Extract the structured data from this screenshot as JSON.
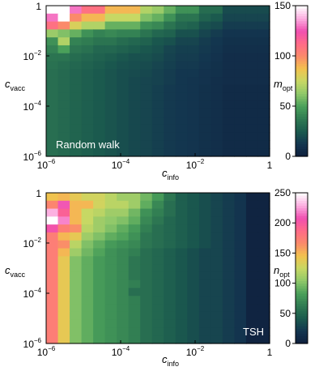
{
  "chart_data": [
    {
      "type": "heatmap",
      "annotation": "Random walk",
      "xlabel": {
        "base": "c",
        "sub": "info"
      },
      "ylabel": {
        "base": "c",
        "sub": "vacc"
      },
      "x_scale": "log",
      "y_scale": "log",
      "xlim": [
        1e-06,
        1
      ],
      "ylim": [
        1e-06,
        1
      ],
      "x_ticks": [
        {
          "value": 1e-06,
          "base": "10",
          "exp": "−6"
        },
        {
          "value": 0.0001,
          "base": "10",
          "exp": "−4"
        },
        {
          "value": 0.01,
          "base": "10",
          "exp": "−2"
        },
        {
          "value": 1,
          "base": "1",
          "exp": ""
        }
      ],
      "y_ticks": [
        {
          "value": 1e-06,
          "base": "10",
          "exp": "−6"
        },
        {
          "value": 0.0001,
          "base": "10",
          "exp": "−4"
        },
        {
          "value": 0.01,
          "base": "10",
          "exp": "−2"
        },
        {
          "value": 1,
          "base": "1",
          "exp": ""
        }
      ],
      "colorbar": {
        "label": {
          "base": "m",
          "sub": "opt"
        },
        "range": [
          0,
          150
        ],
        "ticks": [
          {
            "value": 0,
            "label": "0"
          },
          {
            "value": 50,
            "label": "50"
          },
          {
            "value": 100,
            "label": "100"
          },
          {
            "value": 150,
            "label": "150"
          }
        ]
      },
      "grid_cols": 19,
      "grid_rows": 19,
      "values": [
        [
          150,
          150,
          130,
          110,
          110,
          90,
          90,
          90,
          70,
          65,
          55,
          45,
          45,
          32,
          32,
          20,
          20,
          20,
          20
        ],
        [
          130,
          150,
          100,
          90,
          90,
          75,
          75,
          75,
          60,
          55,
          45,
          35,
          35,
          28,
          25,
          18,
          18,
          18,
          18
        ],
        [
          110,
          100,
          80,
          70,
          70,
          55,
          55,
          55,
          45,
          42,
          35,
          30,
          28,
          22,
          20,
          15,
          15,
          15,
          15
        ],
        [
          65,
          60,
          55,
          45,
          40,
          42,
          40,
          40,
          35,
          30,
          28,
          22,
          22,
          18,
          15,
          12,
          12,
          12,
          12
        ],
        [
          45,
          70,
          40,
          38,
          35,
          35,
          32,
          30,
          28,
          24,
          22,
          18,
          18,
          15,
          13,
          10,
          10,
          10,
          10
        ],
        [
          40,
          50,
          36,
          34,
          30,
          30,
          28,
          26,
          24,
          22,
          18,
          16,
          16,
          14,
          12,
          9,
          9,
          9,
          9
        ],
        [
          35,
          35,
          32,
          30,
          28,
          26,
          24,
          22,
          22,
          20,
          17,
          15,
          15,
          13,
          11,
          8,
          8,
          8,
          8
        ],
        [
          34,
          32,
          30,
          28,
          26,
          24,
          22,
          21,
          20,
          18,
          16,
          14,
          14,
          12,
          10,
          8,
          8,
          8,
          8
        ],
        [
          33,
          31,
          29,
          27,
          25,
          23,
          21,
          20,
          19,
          17,
          15,
          13,
          13,
          11,
          10,
          8,
          8,
          8,
          8
        ],
        [
          33,
          31,
          29,
          27,
          25,
          23,
          21,
          19,
          18,
          17,
          15,
          13,
          12,
          11,
          9,
          8,
          8,
          8,
          8
        ],
        [
          33,
          31,
          29,
          27,
          25,
          23,
          21,
          19,
          18,
          16,
          14,
          13,
          12,
          10,
          9,
          7,
          7,
          7,
          7
        ],
        [
          33,
          31,
          29,
          27,
          25,
          23,
          21,
          19,
          18,
          16,
          14,
          13,
          12,
          10,
          9,
          7,
          7,
          7,
          7
        ],
        [
          33,
          31,
          29,
          27,
          25,
          23,
          21,
          19,
          18,
          16,
          14,
          13,
          12,
          10,
          9,
          7,
          7,
          7,
          7
        ],
        [
          33,
          31,
          29,
          27,
          25,
          23,
          21,
          19,
          18,
          16,
          14,
          13,
          12,
          10,
          9,
          7,
          7,
          7,
          7
        ],
        [
          33,
          31,
          29,
          27,
          25,
          23,
          21,
          19,
          18,
          16,
          14,
          13,
          12,
          10,
          9,
          7,
          7,
          7,
          7
        ],
        [
          33,
          31,
          29,
          27,
          25,
          23,
          21,
          19,
          18,
          16,
          14,
          13,
          12,
          10,
          9,
          7,
          7,
          7,
          7
        ],
        [
          33,
          31,
          29,
          27,
          25,
          23,
          21,
          19,
          18,
          16,
          14,
          13,
          12,
          10,
          9,
          7,
          7,
          7,
          7
        ],
        [
          33,
          31,
          29,
          27,
          25,
          23,
          21,
          19,
          18,
          16,
          14,
          13,
          12,
          10,
          9,
          7,
          7,
          7,
          7
        ],
        [
          33,
          31,
          29,
          27,
          25,
          23,
          21,
          19,
          18,
          16,
          14,
          13,
          12,
          10,
          9,
          7,
          7,
          7,
          7
        ]
      ]
    },
    {
      "type": "heatmap",
      "annotation": "TSH",
      "xlabel": {
        "base": "c",
        "sub": "info"
      },
      "ylabel": {
        "base": "c",
        "sub": "vacc"
      },
      "x_scale": "log",
      "y_scale": "log",
      "xlim": [
        1e-06,
        1
      ],
      "ylim": [
        1e-06,
        1
      ],
      "x_ticks": [
        {
          "value": 1e-06,
          "base": "10",
          "exp": "−6"
        },
        {
          "value": 0.0001,
          "base": "10",
          "exp": "−4"
        },
        {
          "value": 0.01,
          "base": "10",
          "exp": "−2"
        },
        {
          "value": 1,
          "base": "1",
          "exp": ""
        }
      ],
      "y_ticks": [
        {
          "value": 1e-06,
          "base": "10",
          "exp": "−6"
        },
        {
          "value": 0.0001,
          "base": "10",
          "exp": "−4"
        },
        {
          "value": 0.01,
          "base": "10",
          "exp": "−2"
        },
        {
          "value": 1,
          "base": "1",
          "exp": ""
        }
      ],
      "colorbar": {
        "label": {
          "base": "n",
          "sub": "opt"
        },
        "range": [
          0,
          250
        ],
        "ticks": [
          {
            "value": 0,
            "label": "0"
          },
          {
            "value": 50,
            "label": "50"
          },
          {
            "value": 100,
            "label": "100"
          },
          {
            "value": 150,
            "label": "150"
          },
          {
            "value": 200,
            "label": "200"
          },
          {
            "value": 250,
            "label": "250"
          }
        ]
      },
      "grid_cols": 19,
      "grid_rows": 19,
      "values": [
        [
          145,
          150,
          140,
          130,
          130,
          120,
          110,
          110,
          95,
          80,
          60,
          45,
          40,
          35,
          30,
          25,
          20,
          5,
          5
        ],
        [
          170,
          210,
          150,
          150,
          130,
          120,
          120,
          110,
          90,
          70,
          55,
          45,
          40,
          35,
          30,
          25,
          20,
          5,
          5
        ],
        [
          230,
          195,
          150,
          125,
          120,
          110,
          110,
          95,
          75,
          65,
          55,
          45,
          40,
          35,
          30,
          25,
          20,
          5,
          5
        ],
        [
          250,
          220,
          150,
          125,
          110,
          105,
          100,
          90,
          70,
          60,
          50,
          45,
          40,
          35,
          30,
          25,
          20,
          5,
          5
        ],
        [
          205,
          175,
          165,
          120,
          110,
          100,
          90,
          80,
          65,
          55,
          50,
          45,
          40,
          35,
          30,
          25,
          20,
          5,
          5
        ],
        [
          175,
          150,
          140,
          110,
          100,
          90,
          85,
          75,
          60,
          55,
          50,
          45,
          40,
          35,
          30,
          25,
          20,
          5,
          5
        ],
        [
          175,
          165,
          120,
          100,
          90,
          80,
          75,
          70,
          60,
          55,
          50,
          45,
          40,
          35,
          30,
          25,
          20,
          5,
          5
        ],
        [
          175,
          150,
          110,
          95,
          85,
          75,
          70,
          65,
          55,
          50,
          45,
          40,
          35,
          30,
          30,
          25,
          20,
          5,
          5
        ],
        [
          175,
          140,
          100,
          90,
          80,
          75,
          70,
          60,
          55,
          50,
          45,
          40,
          35,
          30,
          30,
          25,
          20,
          5,
          5
        ],
        [
          175,
          140,
          100,
          90,
          80,
          75,
          70,
          60,
          55,
          50,
          45,
          40,
          35,
          30,
          30,
          25,
          20,
          5,
          5
        ],
        [
          175,
          140,
          100,
          90,
          80,
          75,
          70,
          60,
          55,
          50,
          45,
          40,
          35,
          30,
          30,
          25,
          20,
          5,
          5
        ],
        [
          175,
          140,
          100,
          90,
          80,
          75,
          70,
          65,
          55,
          50,
          45,
          40,
          35,
          30,
          30,
          25,
          20,
          5,
          5
        ],
        [
          175,
          140,
          100,
          90,
          80,
          75,
          70,
          55,
          55,
          50,
          45,
          40,
          35,
          30,
          30,
          25,
          20,
          5,
          5
        ],
        [
          175,
          140,
          100,
          90,
          80,
          75,
          70,
          65,
          55,
          50,
          45,
          40,
          35,
          30,
          30,
          25,
          20,
          5,
          5
        ],
        [
          175,
          140,
          100,
          90,
          80,
          75,
          70,
          65,
          55,
          50,
          45,
          40,
          35,
          30,
          30,
          25,
          20,
          5,
          5
        ],
        [
          175,
          140,
          100,
          90,
          80,
          75,
          70,
          65,
          55,
          50,
          45,
          40,
          35,
          30,
          30,
          25,
          20,
          5,
          5
        ],
        [
          175,
          140,
          100,
          90,
          80,
          75,
          70,
          65,
          55,
          50,
          45,
          40,
          35,
          30,
          30,
          25,
          20,
          5,
          5
        ],
        [
          175,
          140,
          100,
          90,
          80,
          75,
          70,
          65,
          55,
          50,
          45,
          40,
          35,
          30,
          30,
          25,
          20,
          5,
          5
        ],
        [
          175,
          140,
          100,
          90,
          80,
          75,
          70,
          65,
          55,
          50,
          45,
          40,
          35,
          30,
          30,
          25,
          20,
          5,
          5
        ]
      ]
    }
  ],
  "colormap": [
    "#0f1f3d",
    "#13354f",
    "#1b5a4e",
    "#2f7a52",
    "#4aa05a",
    "#8fc86a",
    "#c7d864",
    "#f2c24e",
    "#fb8a6a",
    "#ff6b88",
    "#f04fb0",
    "#fcaee0",
    "#ffffff"
  ]
}
